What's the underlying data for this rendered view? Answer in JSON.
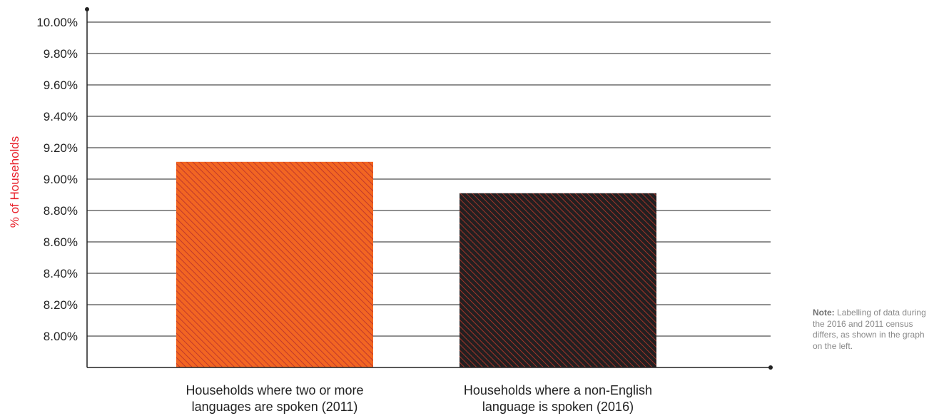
{
  "chart_data": {
    "type": "bar",
    "ylabel": "% of Households",
    "categories": [
      [
        "Households where two or more",
        "languages are spoken (2011)"
      ],
      [
        "Households where a non-English",
        "language is spoken (2016)"
      ]
    ],
    "values": [
      9.11,
      8.91
    ],
    "ylim": [
      7.8,
      10.0
    ],
    "yticks": [
      8.0,
      8.2,
      8.4,
      8.6,
      8.8,
      9.0,
      9.2,
      9.4,
      9.6,
      9.8,
      10.0
    ],
    "ytick_labels": [
      "8.00%",
      "8.20%",
      "8.40%",
      "8.60%",
      "8.80%",
      "9.00%",
      "9.20%",
      "9.40%",
      "9.60%",
      "9.80%",
      "10.00%"
    ],
    "grid": true,
    "colors": {
      "bar_1_fill": "#f26522",
      "bar_1_hatch": "#c0392b",
      "bar_2_fill": "#231f20",
      "bar_2_hatch": "#c0392b",
      "ylabel": "#e8202a",
      "gridline": "#222222"
    }
  },
  "note": {
    "label": "Note:",
    "text": "Labelling of data during the 2016 and 2011 census differs, as shown in the graph on the left."
  }
}
